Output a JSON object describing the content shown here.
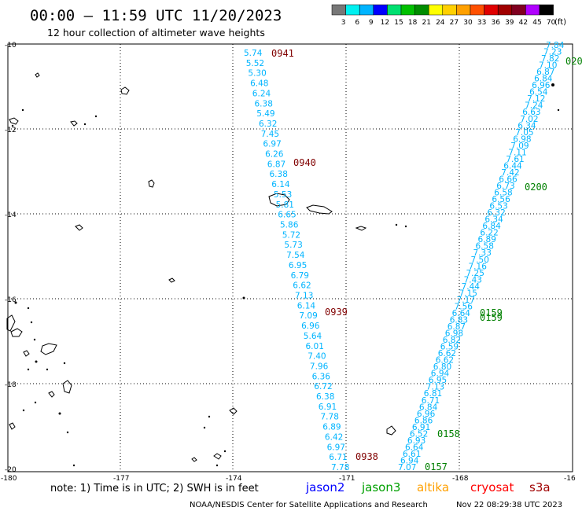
{
  "header": {
    "title": "00:00 – 11:59 UTC 11/20/2023",
    "subtitle": "12 hour collection of altimeter wave heights"
  },
  "colorbar": {
    "unit": "(ft)",
    "ticks": [
      "3",
      "6",
      "9",
      "12",
      "15",
      "18",
      "21",
      "24",
      "27",
      "30",
      "33",
      "36",
      "39",
      "42",
      "45",
      "70"
    ],
    "colors": [
      "#777777",
      "#00f0f0",
      "#00b4ff",
      "#0000ff",
      "#00e070",
      "#00c000",
      "#008c00",
      "#ffff00",
      "#ffd000",
      "#ffa000",
      "#ff5000",
      "#e00000",
      "#a00000",
      "#800020",
      "#b000ff",
      "#000000"
    ]
  },
  "axes": {
    "lon_labels": [
      "-180",
      "-177",
      "-174",
      "-171",
      "-168",
      "-16"
    ],
    "lat_labels": [
      "-10",
      "-12",
      "-14",
      "-16",
      "-18",
      "-20"
    ]
  },
  "tracks": {
    "cryosat": {
      "color": "#00b4ff",
      "time_color": "#800000",
      "heights": [
        "5.74",
        "5.52",
        "5.30",
        "6.48",
        "6.24",
        "6.38",
        "5.49",
        "6.32",
        "7.45",
        "6.97",
        "6.26",
        "6.87",
        "6.38",
        "6.14",
        "5.53",
        "5.81",
        "6.65",
        "5.86",
        "5.72",
        "5.73",
        "7.54",
        "6.95",
        "6.79",
        "6.62",
        "7.13",
        "6.14",
        "7.09",
        "6.96",
        "5.64",
        "6.01",
        "7.40",
        "7.96",
        "6.36",
        "6.72",
        "6.38",
        "6.91",
        "7.78",
        "6.89",
        "6.42",
        "6.97",
        "6.71",
        "7.78"
      ],
      "times": [
        "0941",
        "0940",
        "0939",
        "0938"
      ]
    },
    "jason3": {
      "color": "#00b4ff",
      "time_color": "#008000",
      "heights": [
        "7.84",
        "7.23",
        "7.82",
        "7.10",
        "6.87",
        "6.84",
        "6.96",
        "6.54",
        "7.12",
        "7.24",
        "6.63",
        "7.02",
        "6.34",
        "7.05",
        "6.98",
        "7.09",
        "7.11",
        "7.61",
        "6.44",
        "7.42",
        "6.66",
        "6.73",
        "6.58",
        "6.56",
        "6.53",
        "6.32",
        "6.34",
        "6.84",
        "6.22",
        "6.89",
        "6.58",
        "7.33",
        "7.50",
        "7.16",
        "7.25",
        "7.43",
        "7.44",
        "7.15",
        "7.17",
        "7.56",
        "6.64",
        "6.83",
        "6.87",
        "6.98",
        "6.82",
        "6.59",
        "6.62",
        "6.62",
        "6.80",
        "6.94",
        "6.95",
        "7.13",
        "6.81",
        "6.71",
        "6.84",
        "6.96",
        "6.86",
        "6.91",
        "6.52",
        "6.93",
        "6.64",
        "6.61",
        "6.94",
        "7.07"
      ],
      "times": [
        "020",
        "0200",
        "0159",
        "0159",
        "0158",
        "0157"
      ]
    }
  },
  "footer": {
    "note": "note: 1) Time is in UTC; 2) SWH is in feet",
    "legend": [
      {
        "name": "jason2",
        "color": "#0000ff"
      },
      {
        "name": "jason3",
        "color": "#00a000"
      },
      {
        "name": "altika",
        "color": "#ffa000"
      },
      {
        "name": "cryosat",
        "color": "#ff0000"
      },
      {
        "name": "s3a",
        "color": "#a00000"
      }
    ],
    "credit": "NOAA/NESDIS Center for Satellite Applications and Research",
    "timestamp": "Nov 22 08:29:38 UTC 2023"
  }
}
